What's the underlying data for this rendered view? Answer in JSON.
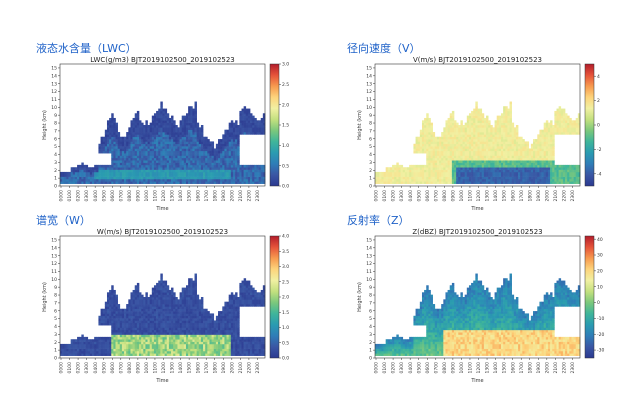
{
  "colors": {
    "panel_title": "#1f62c8",
    "colormap": [
      "#2b3990",
      "#3a56a4",
      "#2f7db7",
      "#2a9bb1",
      "#3fb59a",
      "#7cc87c",
      "#c3e07f",
      "#f1f0a2",
      "#fdd47c",
      "#f79a4f",
      "#e5533a",
      "#b21d2b"
    ]
  },
  "chart_data": [
    {
      "id": "lwc",
      "panel_title": "液态水含量（LWC）",
      "type": "heatmap",
      "title": "LWC(g/m3) BJT2019102500_2019102523",
      "xlabel": "Time",
      "ylabel": "Height (km)",
      "yticks": [
        "0",
        "1",
        "2",
        "3",
        "4",
        "5",
        "6",
        "7",
        "8",
        "9",
        "10",
        "11",
        "12",
        "13",
        "14",
        "15"
      ],
      "xticks": [
        "0000",
        "0100",
        "0200",
        "0300",
        "0400",
        "0500",
        "0600",
        "0700",
        "0800",
        "0900",
        "1000",
        "1100",
        "1200",
        "1300",
        "1400",
        "1500",
        "1600",
        "1700",
        "1800",
        "1900",
        "2000",
        "2100",
        "2200",
        "2300"
      ],
      "ylim": [
        0,
        15.5
      ],
      "colorbar_ticks": [
        "0.0",
        "0.5",
        "1.0",
        "1.5",
        "2.0",
        "2.5",
        "3.0"
      ],
      "colorbar_range": [
        0,
        3.0
      ],
      "mode": "lwc"
    },
    {
      "id": "v",
      "panel_title": "径向速度（V）",
      "type": "heatmap",
      "title": "V(m/s) BJT2019102500_2019102523",
      "xlabel": "Time",
      "ylabel": "Height (km)",
      "yticks": [
        "0",
        "1",
        "2",
        "3",
        "4",
        "5",
        "6",
        "7",
        "8",
        "9",
        "10",
        "11",
        "12",
        "13",
        "14",
        "15"
      ],
      "xticks": [
        "0000",
        "0100",
        "0200",
        "0300",
        "0400",
        "0500",
        "0600",
        "0700",
        "0800",
        "0900",
        "1000",
        "1100",
        "1200",
        "1300",
        "1400",
        "1500",
        "1600",
        "1700",
        "1800",
        "1900",
        "2000",
        "2100",
        "2200",
        "2300"
      ],
      "ylim": [
        0,
        15.5
      ],
      "colorbar_ticks": [
        "-4",
        "-2",
        "0",
        "2",
        "4"
      ],
      "colorbar_range": [
        -5,
        5
      ],
      "mode": "v"
    },
    {
      "id": "w",
      "panel_title": "谱宽（W）",
      "type": "heatmap",
      "title": "W(m/s) BJT2019102500_2019102523",
      "xlabel": "Time",
      "ylabel": "Height (km)",
      "yticks": [
        "0",
        "1",
        "2",
        "3",
        "4",
        "5",
        "6",
        "7",
        "8",
        "9",
        "10",
        "11",
        "12",
        "13",
        "14",
        "15"
      ],
      "xticks": [
        "0000",
        "0100",
        "0200",
        "0300",
        "0400",
        "0500",
        "0600",
        "0700",
        "0800",
        "0900",
        "1000",
        "1100",
        "1200",
        "1300",
        "1400",
        "1500",
        "1600",
        "1700",
        "1800",
        "1900",
        "2000",
        "2100",
        "2200",
        "2300"
      ],
      "ylim": [
        0,
        15.5
      ],
      "colorbar_ticks": [
        "0.0",
        "0.5",
        "1.0",
        "1.5",
        "2.0",
        "2.5",
        "3.0",
        "3.5",
        "4.0"
      ],
      "colorbar_range": [
        0,
        4.0
      ],
      "mode": "w"
    },
    {
      "id": "z",
      "panel_title": "反射率（Z）",
      "type": "heatmap",
      "title": "Z(dBZ) BJT2019102500_2019102523",
      "xlabel": "Time",
      "ylabel": "Height (km)",
      "yticks": [
        "0",
        "1",
        "2",
        "3",
        "4",
        "5",
        "6",
        "7",
        "8",
        "9",
        "10",
        "11",
        "12",
        "13",
        "14",
        "15"
      ],
      "xticks": [
        "0000",
        "0100",
        "0200",
        "0300",
        "0400",
        "0500",
        "0600",
        "0700",
        "0800",
        "0900",
        "1000",
        "1100",
        "1200",
        "1300",
        "1400",
        "1500",
        "1600",
        "1700",
        "1800",
        "1900",
        "2000",
        "2100",
        "2200",
        "2300"
      ],
      "ylim": [
        0,
        15.5
      ],
      "colorbar_ticks": [
        "-30",
        "-20",
        "-10",
        "0",
        "10",
        "20",
        "30",
        "40"
      ],
      "colorbar_range": [
        -35,
        42
      ],
      "mode": "z"
    }
  ]
}
